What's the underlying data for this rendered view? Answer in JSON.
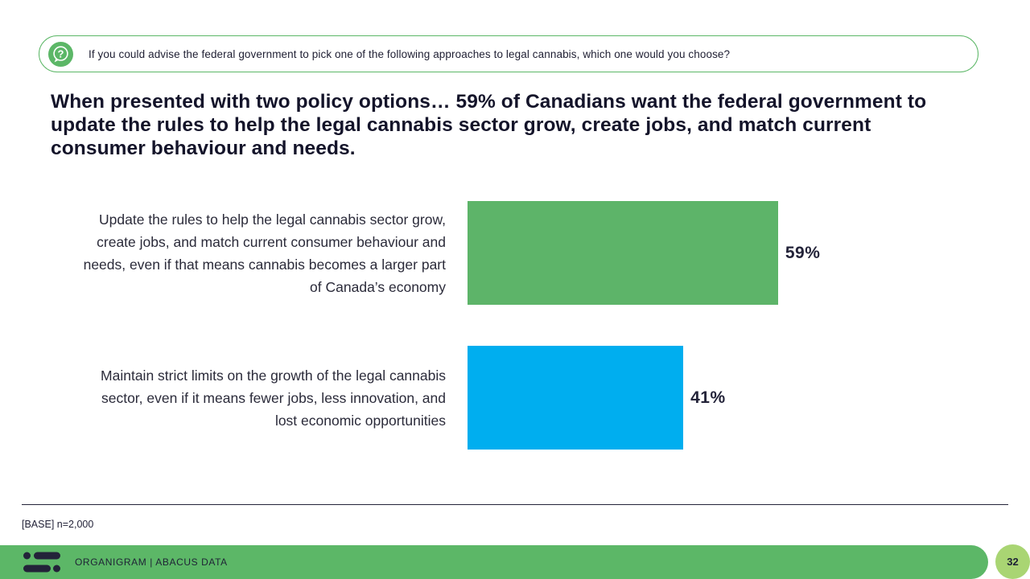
{
  "slide": {
    "question_banner": {
      "icon": "question-bubble-icon",
      "text": "If you could advise the federal government to pick one of the following approaches to legal cannabis, which one would you choose?"
    },
    "headline": "When presented with two policy options… 59% of Canadians want the federal government to update the rules to help the legal cannabis sector grow, create jobs, and match current consumer behaviour and needs.",
    "footnote": "[BASE] n=2,000",
    "footer": {
      "brand": "ORGANIGRAM | ABACUS DATA",
      "page_number": "32"
    }
  },
  "chart_data": {
    "type": "bar",
    "orientation": "horizontal",
    "title": "",
    "categories": [
      "Update the rules to help the legal cannabis sector grow, create jobs, and match current consumer behaviour and needs, even if that means cannabis becomes a larger part of Canada’s economy",
      "Maintain strict limits on the growth of the legal cannabis sector, even if it means fewer jobs, less innovation, and lost economic opportunities"
    ],
    "values": [
      59,
      41
    ],
    "value_labels": [
      "59%",
      "41%"
    ],
    "bar_colors": [
      "#5db469",
      "#00aeef"
    ],
    "xlim": [
      0,
      100
    ],
    "grid": false,
    "legend": false,
    "data_labels": "outside-end"
  },
  "colors": {
    "accent_green": "#5cb767",
    "accent_blue": "#00aeef",
    "badge_green": "#a9d573",
    "text_dark": "#232339"
  }
}
